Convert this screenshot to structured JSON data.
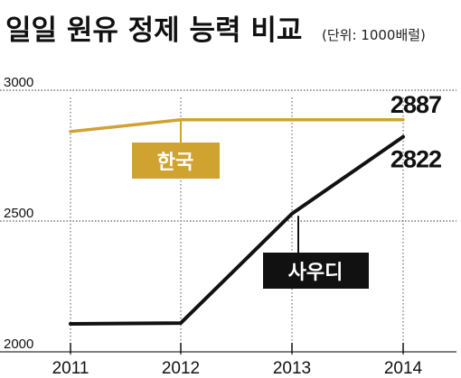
{
  "chart_data": {
    "type": "line",
    "title": "일일 원유 정제 능력 비교",
    "unit": "(단위: 1000배럴)",
    "x": [
      "2011",
      "2012",
      "2013",
      "2014"
    ],
    "ylim": [
      2000,
      3000
    ],
    "y_ticks": [
      "3000",
      "2500",
      "2000"
    ],
    "grid": true,
    "series": [
      {
        "name": "한국",
        "values": [
          2842,
          2887,
          2887,
          2887
        ],
        "color": "#d0a331",
        "end_label": "2887"
      },
      {
        "name": "사우디",
        "values": [
          2107,
          2110,
          2528,
          2822
        ],
        "color": "#111111",
        "end_label": "2822"
      }
    ]
  }
}
